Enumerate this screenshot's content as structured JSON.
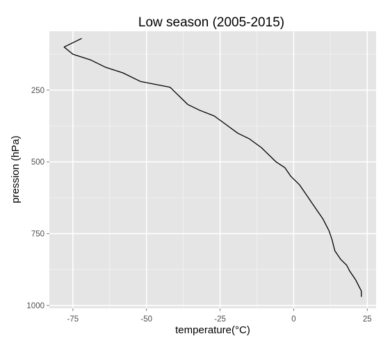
{
  "chart_data": {
    "type": "line",
    "title": "Low season (2005-2015)",
    "xlabel": "temperature(°C)",
    "ylabel": "pression (hPa)",
    "xlim": [
      -83,
      28
    ],
    "ylim": [
      1010,
      45
    ],
    "y_reversed": true,
    "grid": true,
    "legend": "none",
    "x_ticks": [
      -75,
      -50,
      -25,
      0,
      25
    ],
    "y_ticks": [
      250,
      500,
      750,
      1000
    ],
    "x_tick_labels": [
      "-75",
      "-50",
      "-25",
      "0",
      "25"
    ],
    "y_tick_labels": [
      "250",
      "500",
      "750",
      "1000"
    ],
    "colors": {
      "panel": "#e5e5e5",
      "grid_major": "#ffffff",
      "line": "#000000"
    },
    "series": [
      {
        "x": [
          -72,
          -78,
          -75,
          -69,
          -64,
          -58,
          -52,
          -47,
          -42,
          -39,
          -36,
          -32,
          -27,
          -23,
          -19,
          -15,
          -11,
          -8,
          -6,
          -3,
          -1,
          2,
          4,
          6,
          8,
          10,
          12,
          13,
          14,
          16,
          18,
          19,
          21,
          23,
          23
        ],
        "y": [
          70,
          100,
          125,
          145,
          170,
          190,
          220,
          230,
          240,
          270,
          300,
          320,
          340,
          370,
          400,
          420,
          450,
          480,
          500,
          520,
          550,
          580,
          610,
          640,
          670,
          700,
          740,
          770,
          810,
          840,
          860,
          880,
          910,
          950,
          970
        ]
      }
    ]
  }
}
